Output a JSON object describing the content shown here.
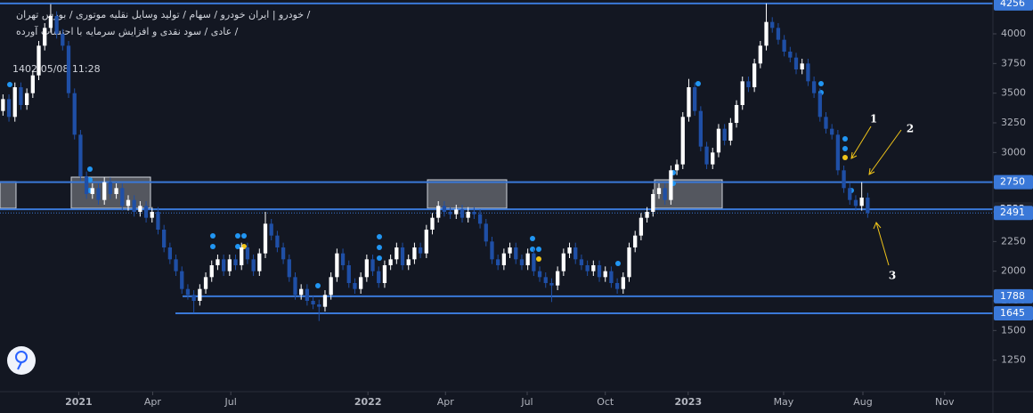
{
  "chart_data": {
    "type": "candlestick",
    "header_lines": [
      "خودرو | ایران خودرو / سهام / تولید وسایل نقلیه موتوری / بورس تهران /",
      "عادی / سود نقدی و افزایش سرمایه با احتساب آورده /",
      "1402/05/08 11:28"
    ],
    "up_color": "#ffffff",
    "down_color": "#1f4fa6",
    "level_color": "#3a78d8",
    "open": [
      3350,
      3450,
      3300,
      3550,
      3400,
      3500,
      3650,
      3900,
      4050,
      4150,
      4000,
      3900,
      3500,
      3150,
      2800,
      2650,
      2700,
      2600,
      2750,
      2650,
      2700,
      2550,
      2600,
      2500,
      2550,
      2450,
      2500,
      2350,
      2200,
      2100,
      2000,
      1850,
      1800,
      1750,
      1850,
      1950,
      2050,
      2100,
      2000,
      2100,
      2050,
      2200,
      2100,
      2000,
      2150,
      2400,
      2300,
      2200,
      2100,
      1950,
      1800,
      1850,
      1750,
      1720,
      1700,
      1800,
      1950,
      2150,
      2050,
      1900,
      1850,
      1950,
      2100,
      2000,
      1900,
      2050,
      2100,
      2200,
      2050,
      2100,
      2200,
      2150,
      2350,
      2450,
      2550,
      2500,
      2480,
      2520,
      2450,
      2500,
      2480,
      2400,
      2250,
      2100,
      2050,
      2150,
      2200,
      2100,
      2050,
      2150,
      2000,
      1950,
      1900,
      1880,
      2000,
      2150,
      2200,
      2100,
      2050,
      2000,
      2050,
      1950,
      2000,
      1900,
      1850,
      1950,
      2200,
      2300,
      2450,
      2500,
      2650,
      2700,
      2600,
      2850,
      2900,
      3300,
      3550,
      3350,
      3050,
      2900,
      3000,
      3200,
      3100,
      3250,
      3400,
      3600,
      3550,
      3750,
      3900,
      4100,
      4050,
      3950,
      3850,
      3800,
      3700,
      3750,
      3600,
      3500,
      3300,
      3200,
      3150,
      2850,
      2700,
      2600,
      2550,
      2620
    ],
    "high": [
      3490,
      3490,
      3590,
      3590,
      3540,
      3690,
      3940,
      4090,
      4250,
      4190,
      4040,
      3940,
      3540,
      3190,
      2840,
      2740,
      2740,
      2790,
      2790,
      2740,
      2740,
      2640,
      2640,
      2590,
      2590,
      2540,
      2540,
      2390,
      2240,
      2140,
      2040,
      1890,
      1840,
      1890,
      1990,
      2090,
      2140,
      2140,
      2140,
      2140,
      2240,
      2240,
      2140,
      2190,
      2500,
      2440,
      2340,
      2240,
      2140,
      1990,
      1890,
      1890,
      1790,
      1760,
      1840,
      1990,
      2190,
      2190,
      2090,
      1940,
      1990,
      2140,
      2140,
      2040,
      2090,
      2140,
      2240,
      2240,
      2140,
      2240,
      2240,
      2390,
      2490,
      2590,
      2590,
      2540,
      2560,
      2560,
      2540,
      2540,
      2520,
      2440,
      2290,
      2140,
      2190,
      2240,
      2240,
      2140,
      2190,
      2190,
      2040,
      1990,
      1940,
      2040,
      2190,
      2240,
      2240,
      2140,
      2090,
      2090,
      2090,
      2040,
      2040,
      1940,
      1990,
      2240,
      2340,
      2490,
      2540,
      2690,
      2740,
      2740,
      2890,
      2940,
      3340,
      3620,
      3590,
      3390,
      3090,
      3040,
      3240,
      3240,
      3290,
      3440,
      3640,
      3640,
      3790,
      3940,
      4256,
      4140,
      4090,
      3990,
      3890,
      3840,
      3790,
      3790,
      3640,
      3540,
      3340,
      3240,
      3190,
      2890,
      2740,
      2640,
      2750,
      2660
    ],
    "low": [
      3310,
      3260,
      3260,
      3360,
      3360,
      3460,
      3610,
      3860,
      4010,
      3960,
      3860,
      3460,
      3110,
      2760,
      2610,
      2610,
      2560,
      2560,
      2610,
      2610,
      2510,
      2510,
      2460,
      2460,
      2410,
      2410,
      2310,
      2160,
      2060,
      1960,
      1810,
      1760,
      1650,
      1710,
      1810,
      1910,
      2010,
      1960,
      1960,
      2010,
      2010,
      2060,
      1960,
      1960,
      2110,
      2260,
      2160,
      2060,
      1910,
      1760,
      1760,
      1710,
      1680,
      1580,
      1660,
      1760,
      1910,
      2010,
      1860,
      1810,
      1810,
      1910,
      1960,
      1860,
      1860,
      2010,
      2060,
      2010,
      2010,
      2060,
      2110,
      2110,
      2310,
      2410,
      2460,
      2440,
      2440,
      2410,
      2410,
      2440,
      2360,
      2210,
      2060,
      2010,
      2010,
      2110,
      2060,
      2010,
      2010,
      1960,
      1910,
      1860,
      1740,
      1840,
      1960,
      2110,
      2060,
      2010,
      1960,
      1960,
      1910,
      1910,
      1860,
      1810,
      1810,
      1910,
      2160,
      2260,
      2410,
      2460,
      2610,
      2560,
      2560,
      2810,
      2860,
      3260,
      3310,
      3010,
      2860,
      2860,
      2960,
      3060,
      3060,
      3210,
      3360,
      3510,
      3510,
      3710,
      3860,
      4010,
      3910,
      3810,
      3760,
      3660,
      3660,
      3560,
      3460,
      3260,
      3160,
      3110,
      2810,
      2660,
      2560,
      2510,
      2510,
      2450
    ],
    "close": [
      3450,
      3300,
      3550,
      3400,
      3500,
      3650,
      3900,
      4050,
      4150,
      4000,
      3900,
      3500,
      3150,
      2800,
      2650,
      2700,
      2600,
      2750,
      2650,
      2700,
      2550,
      2600,
      2500,
      2550,
      2450,
      2500,
      2350,
      2200,
      2100,
      2000,
      1850,
      1800,
      1750,
      1850,
      1950,
      2050,
      2100,
      2000,
      2100,
      2050,
      2200,
      2100,
      2000,
      2150,
      2400,
      2300,
      2200,
      2100,
      1950,
      1800,
      1850,
      1750,
      1720,
      1700,
      1800,
      1950,
      2150,
      2050,
      1900,
      1850,
      1950,
      2100,
      2000,
      1900,
      2050,
      2100,
      2200,
      2050,
      2100,
      2200,
      2150,
      2350,
      2450,
      2550,
      2500,
      2480,
      2520,
      2450,
      2500,
      2480,
      2400,
      2250,
      2100,
      2050,
      2150,
      2200,
      2100,
      2050,
      2150,
      2000,
      1950,
      1900,
      1880,
      2000,
      2150,
      2200,
      2100,
      2050,
      2000,
      2050,
      1950,
      2000,
      1900,
      1850,
      1950,
      2200,
      2300,
      2450,
      2500,
      2650,
      2700,
      2600,
      2850,
      2900,
      3300,
      3550,
      3350,
      3050,
      2900,
      3000,
      3200,
      3100,
      3250,
      3400,
      3600,
      3550,
      3750,
      3900,
      4100,
      4050,
      3950,
      3850,
      3800,
      3700,
      3750,
      3600,
      3500,
      3300,
      3200,
      3150,
      2850,
      2700,
      2600,
      2550,
      2620,
      2491
    ],
    "levels": [
      4256,
      2750,
      2522,
      1788,
      1645
    ],
    "last_price": 2491,
    "xlim": [
      -0.5,
      166
    ],
    "xticks": [
      {
        "value": 12.7,
        "label": "2021"
      },
      {
        "value": 25.1,
        "label": "Apr"
      },
      {
        "value": 38.2,
        "label": "Jul"
      },
      {
        "value": 61.2,
        "label": "2022"
      },
      {
        "value": 74.2,
        "label": "Apr"
      },
      {
        "value": 87.9,
        "label": "Jul"
      },
      {
        "value": 101,
        "label": "Oct"
      },
      {
        "value": 114.9,
        "label": "2023"
      },
      {
        "value": 130.9,
        "label": "May"
      },
      {
        "value": 144.2,
        "label": "Aug"
      },
      {
        "value": 157.9,
        "label": "Nov"
      }
    ],
    "ylim": [
      985,
      4285
    ],
    "yticks": [
      1250,
      1500,
      1750,
      2000,
      2250,
      2500,
      2750,
      3000,
      3250,
      3500,
      3750,
      4000
    ],
    "annotations": [
      "1",
      "2",
      "3"
    ]
  }
}
